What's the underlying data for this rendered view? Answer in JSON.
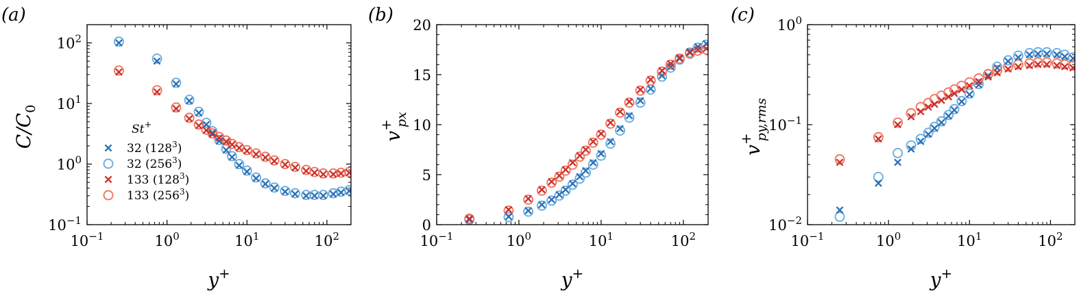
{
  "chart_data": [
    {
      "type": "scatter",
      "panel_label": "(a)",
      "xlabel": "y+",
      "ylabel": "C/C0",
      "xscale": "log",
      "yscale": "log",
      "xlim": [
        0.1,
        200
      ],
      "ylim": [
        0.1,
        200
      ],
      "xticks": [
        {
          "value": 0.1,
          "base": "10",
          "exp": "−1"
        },
        {
          "value": 1,
          "base": "10",
          "exp": "0"
        },
        {
          "value": 10,
          "base": "10",
          "exp": "1"
        },
        {
          "value": 100,
          "base": "10",
          "exp": "2"
        }
      ],
      "yticks": [
        {
          "value": 0.1,
          "base": "10",
          "exp": "−1"
        },
        {
          "value": 1,
          "base": "10",
          "exp": "0"
        },
        {
          "value": 10,
          "base": "10",
          "exp": "1"
        },
        {
          "value": 100,
          "base": "10",
          "exp": "2"
        }
      ],
      "legend": {
        "title": "St+",
        "placement": "lower-left",
        "entries": [
          {
            "series": 0,
            "label": "32 (128",
            "sup": "3",
            "close": ")"
          },
          {
            "series": 1,
            "label": "32 (256",
            "sup": "3",
            "close": ")"
          },
          {
            "series": 2,
            "label": "133 (128",
            "sup": "3",
            "close": ")"
          },
          {
            "series": 3,
            "label": "133 (256",
            "sup": "3",
            "close": ")"
          }
        ]
      },
      "series": [
        {
          "name": "32 (128^3)",
          "marker": "x",
          "color": "#2b6fb4",
          "x": [
            0.25,
            0.75,
            1.3,
            1.9,
            2.5,
            3.1,
            3.7,
            4.5,
            5.5,
            6.5,
            8,
            10,
            13,
            17,
            22,
            30,
            40,
            55,
            70,
            90,
            120,
            150,
            190
          ],
          "y": [
            100,
            50,
            21,
            11,
            7,
            4.5,
            3.3,
            2.4,
            1.7,
            1.3,
            0.95,
            0.75,
            0.58,
            0.47,
            0.4,
            0.35,
            0.32,
            0.3,
            0.3,
            0.3,
            0.32,
            0.34,
            0.36
          ]
        },
        {
          "name": "32 (256^3)",
          "marker": "o",
          "color": "#6aaee0",
          "x": [
            0.25,
            0.75,
            1.3,
            1.9,
            2.5,
            3.1,
            3.7,
            4.5,
            5.5,
            6.5,
            8,
            10,
            13,
            17,
            22,
            30,
            40,
            55,
            70,
            90,
            120,
            150,
            190
          ],
          "y": [
            105,
            55,
            22,
            11.5,
            7.3,
            4.8,
            3.5,
            2.5,
            1.8,
            1.35,
            1.0,
            0.78,
            0.6,
            0.48,
            0.41,
            0.36,
            0.33,
            0.31,
            0.31,
            0.31,
            0.33,
            0.35,
            0.37
          ]
        },
        {
          "name": "133 (128^3)",
          "marker": "x",
          "color": "#c9302c",
          "x": [
            0.25,
            0.75,
            1.3,
            1.9,
            2.5,
            3.1,
            3.7,
            4.5,
            5.5,
            6.5,
            8,
            10,
            13,
            17,
            22,
            30,
            40,
            55,
            70,
            90,
            120,
            150,
            190
          ],
          "y": [
            33,
            15.5,
            8.2,
            5.6,
            4.3,
            3.6,
            3.1,
            2.7,
            2.35,
            2.1,
            1.85,
            1.65,
            1.45,
            1.28,
            1.12,
            0.98,
            0.87,
            0.77,
            0.72,
            0.68,
            0.68,
            0.7,
            0.72
          ]
        },
        {
          "name": "133 (256^3)",
          "marker": "o",
          "color": "#f07560",
          "x": [
            0.25,
            0.75,
            1.3,
            1.9,
            2.5,
            3.1,
            3.7,
            4.5,
            5.5,
            6.5,
            8,
            10,
            13,
            17,
            22,
            30,
            40,
            55,
            70,
            90,
            120,
            150,
            190
          ],
          "y": [
            35,
            16.5,
            8.6,
            5.8,
            4.5,
            3.7,
            3.2,
            2.8,
            2.45,
            2.15,
            1.9,
            1.7,
            1.5,
            1.32,
            1.15,
            1.0,
            0.9,
            0.8,
            0.74,
            0.7,
            0.7,
            0.72,
            0.74
          ]
        }
      ]
    },
    {
      "type": "scatter",
      "panel_label": "(b)",
      "xlabel": "y+",
      "ylabel": "v+px",
      "xscale": "log",
      "yscale": "linear",
      "xlim": [
        0.1,
        200
      ],
      "ylim": [
        0,
        20
      ],
      "xticks": [
        {
          "value": 0.1,
          "base": "10",
          "exp": "−1"
        },
        {
          "value": 1,
          "base": "10",
          "exp": "0"
        },
        {
          "value": 10,
          "base": "10",
          "exp": "1"
        },
        {
          "value": 100,
          "base": "10",
          "exp": "2"
        }
      ],
      "yticks": [
        {
          "value": 0,
          "label": "0"
        },
        {
          "value": 5,
          "label": "5"
        },
        {
          "value": 10,
          "label": "10"
        },
        {
          "value": 15,
          "label": "15"
        },
        {
          "value": 20,
          "label": "20"
        }
      ],
      "series": [
        {
          "name": "32 (128^3)",
          "marker": "x",
          "color": "#2b6fb4",
          "x": [
            0.25,
            0.75,
            1.3,
            1.9,
            2.5,
            3.1,
            3.7,
            4.5,
            5.5,
            6.5,
            8,
            10,
            13,
            17,
            22,
            30,
            40,
            55,
            70,
            90,
            120,
            150,
            190
          ],
          "y": [
            0.5,
            0.8,
            1.4,
            2.0,
            2.5,
            3.0,
            3.5,
            4.1,
            4.8,
            5.4,
            6.2,
            7.1,
            8.3,
            9.6,
            10.9,
            12.4,
            13.6,
            14.9,
            15.8,
            16.6,
            17.3,
            17.8,
            18.1
          ]
        },
        {
          "name": "32 (256^3)",
          "marker": "o",
          "color": "#6aaee0",
          "x": [
            0.25,
            0.75,
            1.3,
            1.9,
            2.5,
            3.1,
            3.7,
            4.5,
            5.5,
            6.5,
            8,
            10,
            13,
            17,
            22,
            30,
            40,
            55,
            70,
            90,
            120,
            150,
            190
          ],
          "y": [
            0.5,
            0.75,
            1.3,
            1.9,
            2.4,
            2.9,
            3.4,
            4.0,
            4.6,
            5.2,
            6.0,
            6.9,
            8.1,
            9.4,
            10.7,
            12.2,
            13.5,
            14.8,
            15.7,
            16.5,
            17.2,
            17.7,
            18.0
          ]
        },
        {
          "name": "133 (128^3)",
          "marker": "x",
          "color": "#c9302c",
          "x": [
            0.25,
            0.75,
            1.3,
            1.9,
            2.5,
            3.1,
            3.7,
            4.5,
            5.5,
            6.5,
            8,
            10,
            13,
            17,
            22,
            30,
            40,
            55,
            70,
            90,
            120,
            150,
            190
          ],
          "y": [
            0.6,
            1.5,
            2.6,
            3.5,
            4.3,
            4.9,
            5.5,
            6.2,
            6.9,
            7.5,
            8.3,
            9.1,
            10.2,
            11.3,
            12.3,
            13.5,
            14.5,
            15.4,
            16.1,
            16.7,
            17.2,
            17.5,
            17.6
          ]
        },
        {
          "name": "133 (256^3)",
          "marker": "o",
          "color": "#f07560",
          "x": [
            0.25,
            0.75,
            1.3,
            1.9,
            2.5,
            3.1,
            3.7,
            4.5,
            5.5,
            6.5,
            8,
            10,
            13,
            17,
            22,
            30,
            40,
            55,
            70,
            90,
            120,
            150,
            190
          ],
          "y": [
            0.6,
            1.4,
            2.5,
            3.4,
            4.2,
            4.8,
            5.4,
            6.0,
            6.8,
            7.4,
            8.2,
            9.0,
            10.1,
            11.2,
            12.2,
            13.4,
            14.4,
            15.3,
            16.0,
            16.6,
            17.1,
            17.4,
            17.5
          ]
        }
      ]
    },
    {
      "type": "scatter",
      "panel_label": "(c)",
      "xlabel": "y+",
      "ylabel": "v+py,rms",
      "xscale": "log",
      "yscale": "log",
      "xlim": [
        0.1,
        200
      ],
      "ylim": [
        0.01,
        1
      ],
      "xticks": [
        {
          "value": 0.1,
          "base": "10",
          "exp": "−1"
        },
        {
          "value": 1,
          "base": "10",
          "exp": "0"
        },
        {
          "value": 10,
          "base": "10",
          "exp": "1"
        },
        {
          "value": 100,
          "base": "10",
          "exp": "2"
        }
      ],
      "yticks": [
        {
          "value": 0.01,
          "base": "10",
          "exp": "−2"
        },
        {
          "value": 0.1,
          "base": "10",
          "exp": "−1"
        },
        {
          "value": 1,
          "base": "10",
          "exp": "0"
        }
      ],
      "series": [
        {
          "name": "32 (128^3)",
          "marker": "x",
          "color": "#2b6fb4",
          "x": [
            0.25,
            0.75,
            1.3,
            1.9,
            2.5,
            3.1,
            3.7,
            4.5,
            5.5,
            6.5,
            8,
            10,
            13,
            17,
            22,
            30,
            40,
            55,
            70,
            90,
            120,
            150,
            190
          ],
          "y": [
            0.014,
            0.026,
            0.042,
            0.057,
            0.068,
            0.08,
            0.092,
            0.105,
            0.122,
            0.14,
            0.17,
            0.2,
            0.25,
            0.31,
            0.37,
            0.43,
            0.47,
            0.5,
            0.51,
            0.51,
            0.5,
            0.48,
            0.46
          ]
        },
        {
          "name": "32 (256^3)",
          "marker": "o",
          "color": "#6aaee0",
          "x": [
            0.25,
            0.75,
            1.3,
            1.9,
            2.5,
            3.1,
            3.7,
            4.5,
            5.5,
            6.5,
            8,
            10,
            13,
            17,
            22,
            30,
            40,
            55,
            70,
            90,
            120,
            150,
            190
          ],
          "y": [
            0.012,
            0.03,
            0.052,
            0.062,
            0.072,
            0.083,
            0.095,
            0.108,
            0.125,
            0.143,
            0.172,
            0.205,
            0.255,
            0.32,
            0.38,
            0.44,
            0.49,
            0.52,
            0.53,
            0.53,
            0.52,
            0.5,
            0.47
          ]
        },
        {
          "name": "133 (128^3)",
          "marker": "x",
          "color": "#c9302c",
          "x": [
            0.25,
            0.75,
            1.3,
            1.9,
            2.5,
            3.1,
            3.7,
            4.5,
            5.5,
            6.5,
            8,
            10,
            13,
            17,
            22,
            30,
            40,
            55,
            70,
            90,
            120,
            150,
            190
          ],
          "y": [
            0.042,
            0.072,
            0.1,
            0.12,
            0.135,
            0.15,
            0.16,
            0.175,
            0.19,
            0.205,
            0.225,
            0.245,
            0.27,
            0.3,
            0.33,
            0.36,
            0.38,
            0.39,
            0.4,
            0.4,
            0.39,
            0.38,
            0.37
          ]
        },
        {
          "name": "133 (256^3)",
          "marker": "o",
          "color": "#f07560",
          "x": [
            0.25,
            0.75,
            1.3,
            1.9,
            2.5,
            3.1,
            3.7,
            4.5,
            5.5,
            6.5,
            8,
            10,
            13,
            17,
            22,
            30,
            40,
            55,
            70,
            90,
            120,
            150,
            190
          ],
          "y": [
            0.045,
            0.075,
            0.105,
            0.13,
            0.15,
            0.165,
            0.18,
            0.195,
            0.21,
            0.225,
            0.245,
            0.265,
            0.29,
            0.32,
            0.35,
            0.38,
            0.4,
            0.41,
            0.42,
            0.42,
            0.41,
            0.4,
            0.39
          ]
        }
      ]
    }
  ]
}
